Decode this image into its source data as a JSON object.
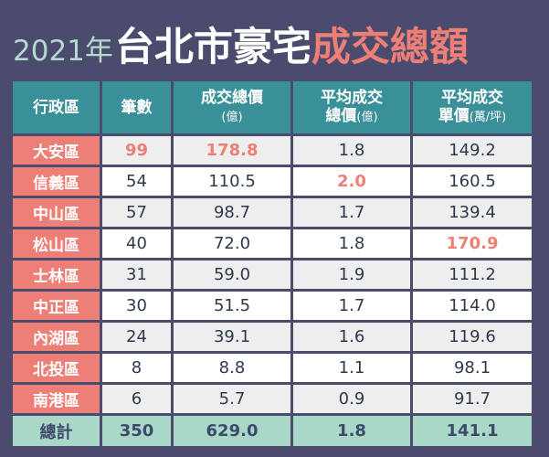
{
  "title": {
    "year": "2021年",
    "main": "台北市豪宅",
    "accent": "成交總額"
  },
  "colors": {
    "background": "#4b4b6d",
    "header": "#3a9099",
    "accent": "#ee7f76",
    "total_row": "#a9d8c8"
  },
  "headers": [
    {
      "line1": "行政區",
      "unit": ""
    },
    {
      "line1": "筆數",
      "unit": ""
    },
    {
      "line1": "成交總價",
      "unit": "(億)"
    },
    {
      "line1": "平均成交",
      "line2": "總價",
      "unit": "(億)"
    },
    {
      "line1": "平均成交",
      "line2": "單價",
      "unit": "(萬/坪)"
    }
  ],
  "rows": [
    [
      "大安區",
      "99",
      "178.8",
      "1.8",
      "149.2"
    ],
    [
      "信義區",
      "54",
      "110.5",
      "2.0",
      "160.5"
    ],
    [
      "中山區",
      "57",
      "98.7",
      "1.7",
      "139.4"
    ],
    [
      "松山區",
      "40",
      "72.0",
      "1.8",
      "170.9"
    ],
    [
      "士林區",
      "31",
      "59.0",
      "1.9",
      "111.2"
    ],
    [
      "中正區",
      "30",
      "51.5",
      "1.7",
      "114.0"
    ],
    [
      "內湖區",
      "24",
      "39.1",
      "1.6",
      "119.6"
    ],
    [
      "北投區",
      "8",
      "8.8",
      "1.1",
      "98.1"
    ],
    [
      "南港區",
      "6",
      "5.7",
      "0.9",
      "91.7"
    ]
  ],
  "highlights": [
    [
      0,
      1
    ],
    [
      0,
      2
    ],
    [
      1,
      3
    ],
    [
      3,
      4
    ]
  ],
  "total": [
    "總計",
    "350",
    "629.0",
    "1.8",
    "141.1"
  ]
}
